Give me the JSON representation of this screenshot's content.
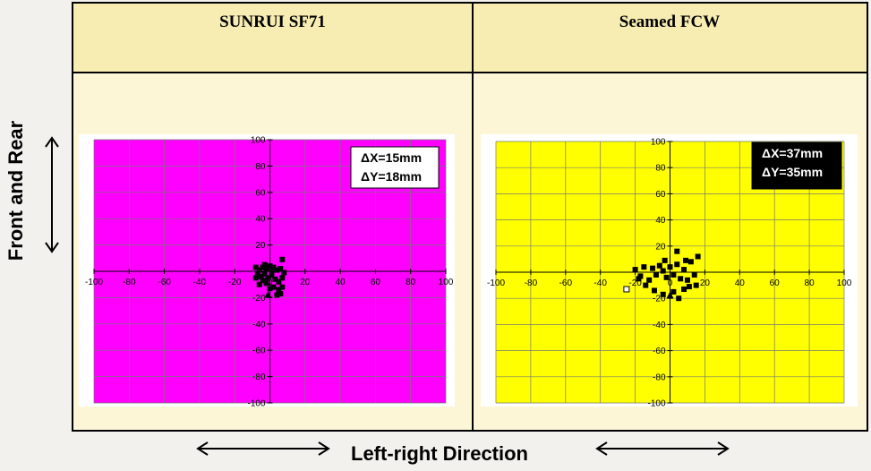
{
  "side_labels": {
    "y_direction": "Front and Rear",
    "x_direction": "Left-right Direction"
  },
  "chart_data": [
    {
      "type": "scatter",
      "title": "SUNRUI SF71",
      "background": "#ff00ff",
      "annotation": [
        "ΔX=15mm",
        "ΔY=18mm"
      ],
      "annotation_style": "light",
      "xlim": [
        -100,
        100
      ],
      "ylim": [
        -100,
        100
      ],
      "x_ticks": [
        -100,
        -80,
        -60,
        -40,
        -20,
        0,
        20,
        40,
        60,
        80,
        100
      ],
      "y_ticks": [
        100,
        80,
        60,
        40,
        20,
        0,
        -20,
        -40,
        -60,
        -80,
        -100
      ],
      "grid": true,
      "points": [
        {
          "x": -8,
          "y": 3
        },
        {
          "x": -6,
          "y": 1
        },
        {
          "x": -4,
          "y": 3
        },
        {
          "x": -2,
          "y": 2
        },
        {
          "x": 0,
          "y": 4
        },
        {
          "x": 2,
          "y": 3
        },
        {
          "x": 4,
          "y": 1
        },
        {
          "x": 6,
          "y": 2
        },
        {
          "x": 8,
          "y": -1
        },
        {
          "x": -7,
          "y": -2
        },
        {
          "x": -5,
          "y": -4
        },
        {
          "x": -3,
          "y": -2
        },
        {
          "x": -1,
          "y": -5
        },
        {
          "x": 1,
          "y": -3
        },
        {
          "x": 3,
          "y": -6
        },
        {
          "x": 5,
          "y": -8
        },
        {
          "x": 7,
          "y": -5
        },
        {
          "x": -6,
          "y": -10
        },
        {
          "x": -2,
          "y": -9
        },
        {
          "x": 2,
          "y": -12
        },
        {
          "x": 5,
          "y": -14
        },
        {
          "x": 7,
          "y": -12
        },
        {
          "x": -4,
          "y": -7
        },
        {
          "x": 0,
          "y": -13
        },
        {
          "x": 6,
          "y": -17
        },
        {
          "x": 7,
          "y": 9
        },
        {
          "x": -8,
          "y": -5
        },
        {
          "x": 4,
          "y": -18
        },
        {
          "x": -3,
          "y": 5
        },
        {
          "x": 1,
          "y": -1
        }
      ],
      "highlight_point": {
        "x": -1,
        "y": -18
      }
    },
    {
      "type": "scatter",
      "title": "Seamed  FCW",
      "background": "#ffff00",
      "annotation": [
        "ΔX=37mm",
        "ΔY=35mm"
      ],
      "annotation_style": "dark",
      "xlim": [
        -100,
        100
      ],
      "ylim": [
        -100,
        100
      ],
      "x_ticks": [
        -100,
        -80,
        -60,
        -40,
        -20,
        0,
        20,
        40,
        60,
        80,
        100
      ],
      "y_ticks": [
        100,
        80,
        60,
        40,
        20,
        0,
        -20,
        -40,
        -60,
        -80,
        -100
      ],
      "grid": true,
      "points": [
        {
          "x": -20,
          "y": 2
        },
        {
          "x": -17,
          "y": -3
        },
        {
          "x": -15,
          "y": 4
        },
        {
          "x": -12,
          "y": -6
        },
        {
          "x": -10,
          "y": 3
        },
        {
          "x": -8,
          "y": -2
        },
        {
          "x": -6,
          "y": 5
        },
        {
          "x": -4,
          "y": 1
        },
        {
          "x": -2,
          "y": -4
        },
        {
          "x": 0,
          "y": 4
        },
        {
          "x": 2,
          "y": -2
        },
        {
          "x": 4,
          "y": 6
        },
        {
          "x": 6,
          "y": -5
        },
        {
          "x": 8,
          "y": 2
        },
        {
          "x": 10,
          "y": -6
        },
        {
          "x": 12,
          "y": 8
        },
        {
          "x": 14,
          "y": -2
        },
        {
          "x": 15,
          "y": -10
        },
        {
          "x": 16,
          "y": 12
        },
        {
          "x": -14,
          "y": -10
        },
        {
          "x": -9,
          "y": -14
        },
        {
          "x": -4,
          "y": -17
        },
        {
          "x": 2,
          "y": -15
        },
        {
          "x": 8,
          "y": -13
        },
        {
          "x": 11,
          "y": -11
        },
        {
          "x": 4,
          "y": 16
        },
        {
          "x": -3,
          "y": 9
        },
        {
          "x": 9,
          "y": 9
        },
        {
          "x": -18,
          "y": -5
        },
        {
          "x": 5,
          "y": -20
        }
      ],
      "open_point": {
        "x": -25,
        "y": -13
      },
      "highlight_point": {
        "x": 0,
        "y": -18
      }
    }
  ]
}
